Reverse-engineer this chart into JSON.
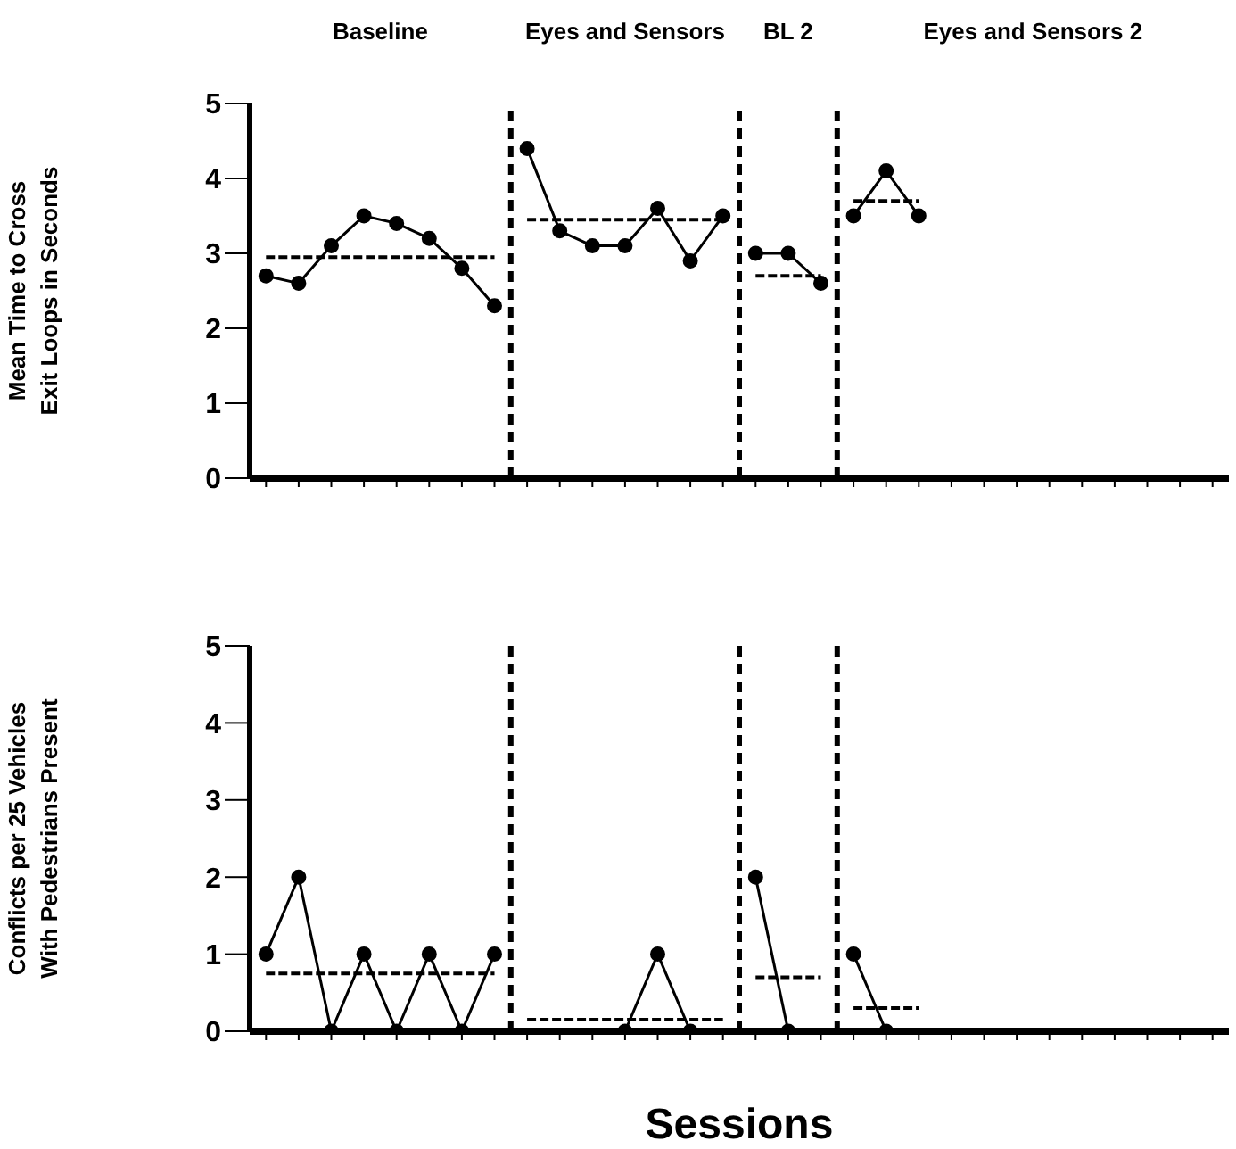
{
  "chart_data": [
    {
      "type": "line",
      "ylabel": "Mean Time to Cross\nExit Loops in Seconds",
      "ylim": [
        0,
        5
      ],
      "yticks": [
        0,
        1,
        2,
        3,
        4,
        5
      ],
      "categories": [
        null,
        null,
        null,
        null,
        null,
        null,
        null,
        null,
        null,
        null,
        null,
        null,
        null,
        null,
        null,
        null,
        null,
        null,
        null,
        null,
        null,
        null,
        null,
        null,
        null,
        null,
        null,
        null,
        null,
        null
      ],
      "tick_labels": "y",
      "legend": false,
      "marker": "circle",
      "line_style": "solid",
      "annotations": [
        "Baseline",
        "Eyes and Sensors",
        "BL 2",
        "Eyes and Sensors 2"
      ],
      "series": [
        {
          "color": "#000000",
          "values": [
            2.7,
            2.6,
            3.1,
            3.5,
            3.4,
            3.2,
            2.8,
            2.3,
            null,
            null,
            null,
            null,
            null,
            null,
            null,
            null,
            null,
            null,
            null,
            null,
            null,
            null,
            null,
            null,
            null,
            null,
            null,
            null,
            null,
            null
          ]
        },
        {
          "color": "#000000",
          "values": [
            null,
            null,
            null,
            null,
            null,
            null,
            null,
            null,
            4.4,
            3.3,
            3.1,
            3.1,
            3.6,
            2.9,
            3.5,
            null,
            null,
            null,
            null,
            null,
            null,
            null,
            null,
            null,
            null,
            null,
            null,
            null,
            null,
            null
          ]
        },
        {
          "color": "#000000",
          "values": [
            null,
            null,
            null,
            null,
            null,
            null,
            null,
            null,
            null,
            null,
            null,
            null,
            null,
            null,
            null,
            3.0,
            3.0,
            2.6,
            null,
            null,
            null,
            null,
            null,
            null,
            null,
            null,
            null,
            null,
            null,
            null
          ]
        },
        {
          "color": "#000000",
          "values": [
            null,
            null,
            null,
            null,
            null,
            null,
            null,
            null,
            null,
            null,
            null,
            null,
            null,
            null,
            null,
            null,
            null,
            null,
            3.5,
            4.1,
            3.5,
            null,
            null,
            null,
            null,
            null,
            null,
            null,
            null,
            null
          ]
        },
        {
          "color": "#000000",
          "marker": "none",
          "line_style": "dashed",
          "values": [
            2.95,
            2.95,
            2.95,
            2.95,
            2.95,
            2.95,
            2.95,
            2.95,
            null,
            null,
            null,
            null,
            null,
            null,
            null,
            null,
            null,
            null,
            null,
            null,
            null,
            null,
            null,
            null,
            null,
            null,
            null,
            null,
            null,
            null
          ]
        },
        {
          "color": "#000000",
          "marker": "none",
          "line_style": "dashed",
          "values": [
            null,
            null,
            null,
            null,
            null,
            null,
            null,
            null,
            3.45,
            3.45,
            3.45,
            3.45,
            3.45,
            3.45,
            3.45,
            null,
            null,
            null,
            null,
            null,
            null,
            null,
            null,
            null,
            null,
            null,
            null,
            null,
            null,
            null
          ]
        },
        {
          "color": "#000000",
          "marker": "none",
          "line_style": "dashed",
          "values": [
            null,
            null,
            null,
            null,
            null,
            null,
            null,
            null,
            null,
            null,
            null,
            null,
            null,
            null,
            null,
            2.7,
            2.7,
            2.7,
            null,
            null,
            null,
            null,
            null,
            null,
            null,
            null,
            null,
            null,
            null,
            null
          ]
        },
        {
          "color": "#000000",
          "marker": "none",
          "line_style": "dashed",
          "values": [
            null,
            null,
            null,
            null,
            null,
            null,
            null,
            null,
            null,
            null,
            null,
            null,
            null,
            null,
            null,
            null,
            null,
            null,
            3.7,
            3.7,
            3.7,
            null,
            null,
            null,
            null,
            null,
            null,
            null,
            null,
            null
          ]
        }
      ]
    },
    {
      "type": "line",
      "ylabel": "Conflicts per 25 Vehicles\nWith Pedestrians Present",
      "xlabel": "Sessions",
      "ylim": [
        0,
        5
      ],
      "yticks": [
        0,
        1,
        2,
        3,
        4,
        5
      ],
      "categories": [
        null,
        null,
        null,
        null,
        null,
        null,
        null,
        null,
        null,
        null,
        null,
        null,
        null,
        null,
        null,
        null,
        null,
        null,
        null,
        null,
        null,
        null,
        null,
        null,
        null,
        null,
        null,
        null,
        null,
        null
      ],
      "tick_labels": "y",
      "legend": false,
      "marker": "circle",
      "line_style": "solid",
      "series": [
        {
          "color": "#000000",
          "values": [
            1,
            2,
            0,
            1,
            0,
            1,
            0,
            1,
            null,
            null,
            null,
            null,
            null,
            null,
            null,
            null,
            null,
            null,
            null,
            null,
            null,
            null,
            null,
            null,
            null,
            null,
            null,
            null,
            null,
            null
          ]
        },
        {
          "color": "#000000",
          "values": [
            null,
            null,
            null,
            null,
            null,
            null,
            null,
            null,
            null,
            null,
            null,
            0,
            1,
            0,
            null,
            null,
            null,
            null,
            null,
            null,
            null,
            null,
            null,
            null,
            null,
            null,
            null,
            null,
            null,
            null
          ]
        },
        {
          "color": "#000000",
          "values": [
            null,
            null,
            null,
            null,
            null,
            null,
            null,
            null,
            null,
            null,
            null,
            null,
            null,
            null,
            null,
            2,
            0,
            null,
            null,
            null,
            null,
            null,
            null,
            null,
            null,
            null,
            null,
            null,
            null,
            null
          ]
        },
        {
          "color": "#000000",
          "values": [
            null,
            null,
            null,
            null,
            null,
            null,
            null,
            null,
            null,
            null,
            null,
            null,
            null,
            null,
            null,
            null,
            null,
            null,
            1,
            0,
            null,
            null,
            null,
            null,
            null,
            null,
            null,
            null,
            null,
            null
          ]
        },
        {
          "color": "#000000",
          "marker": "none",
          "line_style": "dashed",
          "values": [
            0.75,
            0.75,
            0.75,
            0.75,
            0.75,
            0.75,
            0.75,
            0.75,
            null,
            null,
            null,
            null,
            null,
            null,
            null,
            null,
            null,
            null,
            null,
            null,
            null,
            null,
            null,
            null,
            null,
            null,
            null,
            null,
            null,
            null
          ]
        },
        {
          "color": "#000000",
          "marker": "none",
          "line_style": "dashed",
          "values": [
            null,
            null,
            null,
            null,
            null,
            null,
            null,
            null,
            0.15,
            0.15,
            0.15,
            0.15,
            0.15,
            0.15,
            0.15,
            null,
            null,
            null,
            null,
            null,
            null,
            null,
            null,
            null,
            null,
            null,
            null,
            null,
            null,
            null
          ]
        },
        {
          "color": "#000000",
          "marker": "none",
          "line_style": "dashed",
          "values": [
            null,
            null,
            null,
            null,
            null,
            null,
            null,
            null,
            null,
            null,
            null,
            null,
            null,
            null,
            null,
            0.7,
            0.7,
            0.7,
            null,
            null,
            null,
            null,
            null,
            null,
            null,
            null,
            null,
            null,
            null,
            null
          ]
        },
        {
          "color": "#000000",
          "marker": "none",
          "line_style": "dashed",
          "values": [
            null,
            null,
            null,
            null,
            null,
            null,
            null,
            null,
            null,
            null,
            null,
            null,
            null,
            null,
            null,
            null,
            null,
            null,
            0.3,
            0.3,
            0.3,
            null,
            null,
            null,
            null,
            null,
            null,
            null,
            null,
            null
          ]
        }
      ]
    }
  ]
}
